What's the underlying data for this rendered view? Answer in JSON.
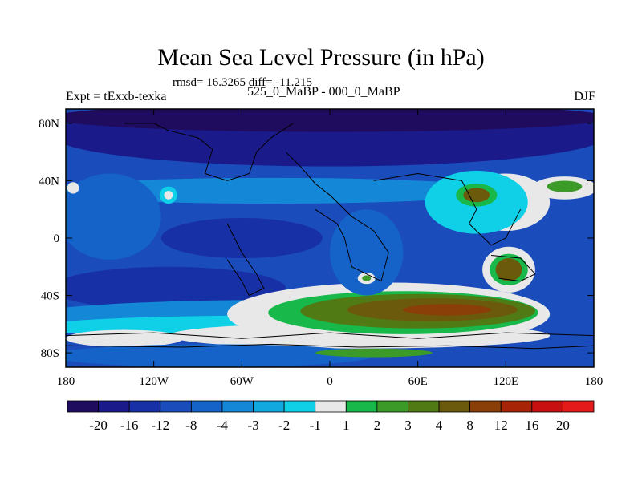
{
  "chart_data": {
    "type": "heatmap",
    "title": "Mean Sea Level Pressure (in hPa)",
    "stats_text": "rmsd= 16.3265 diff= -11.215",
    "left_label": "Expt = tExxb-texka",
    "center_label": "525_0_MaBP - 000_0_MaBP",
    "right_label": "DJF",
    "x_ticks": [
      {
        "value": -180,
        "label": "180"
      },
      {
        "value": -120,
        "label": "120W"
      },
      {
        "value": -60,
        "label": "60W"
      },
      {
        "value": 0,
        "label": "0"
      },
      {
        "value": 60,
        "label": "60E"
      },
      {
        "value": 120,
        "label": "120E"
      },
      {
        "value": 180,
        "label": "180"
      }
    ],
    "y_ticks": [
      {
        "value": 80,
        "label": "80N"
      },
      {
        "value": 40,
        "label": "40N"
      },
      {
        "value": 0,
        "label": "0"
      },
      {
        "value": -40,
        "label": "40S"
      },
      {
        "value": -80,
        "label": "80S"
      }
    ],
    "xlim": [
      -180,
      180
    ],
    "ylim": [
      -90,
      90
    ],
    "colorbar": {
      "labels": [
        "-20",
        "-16",
        "-12",
        "-8",
        "-4",
        "-3",
        "-2",
        "-1",
        "1",
        "2",
        "3",
        "4",
        "8",
        "12",
        "16",
        "20"
      ],
      "colors": [
        "#1f0c5e",
        "#1b1a8a",
        "#1830a5",
        "#1a4cbc",
        "#1563c8",
        "#1487d6",
        "#10a8df",
        "#10d0e8",
        "#e8e8e8",
        "#18b84a",
        "#3c9a28",
        "#4f7a14",
        "#6c5a0c",
        "#8a3e08",
        "#a82406",
        "#c81010",
        "#e41a1a"
      ]
    },
    "fields": [
      {
        "name": "background",
        "lon": 0,
        "lat": 0,
        "rx": 180,
        "ry": 90,
        "color": "#1a4cbc"
      },
      {
        "name": "north-band",
        "lon": 0,
        "lat": 72,
        "rx": 190,
        "ry": 22,
        "color": "#1b1a8a"
      },
      {
        "name": "arctic-cap",
        "lon": 0,
        "lat": 84,
        "rx": 190,
        "ry": 10,
        "color": "#1f0c5e"
      },
      {
        "name": "midlat-north-band",
        "lon": -40,
        "lat": 33,
        "rx": 160,
        "ry": 9,
        "color": "#1487d6"
      },
      {
        "name": "west-pacific-light",
        "lon": -150,
        "lat": 15,
        "rx": 35,
        "ry": 30,
        "color": "#1563c8"
      },
      {
        "name": "tropics-dark",
        "lon": -60,
        "lat": 0,
        "rx": 55,
        "ry": 14,
        "color": "#1830a5"
      },
      {
        "name": "south-pacific-dark",
        "lon": -110,
        "lat": -35,
        "rx": 80,
        "ry": 15,
        "color": "#1830a5"
      },
      {
        "name": "south-band-light",
        "lon": -30,
        "lat": -55,
        "rx": 180,
        "ry": 12,
        "color": "#1487d6"
      },
      {
        "name": "south-band-cyan",
        "lon": -40,
        "lat": -62,
        "rx": 160,
        "ry": 8,
        "color": "#10d0e8"
      },
      {
        "name": "antarctic-white",
        "lon": 20,
        "lat": -68,
        "rx": 130,
        "ry": 9,
        "color": "#e8e8e8"
      },
      {
        "name": "antarctic-white-west",
        "lon": -140,
        "lat": -70,
        "rx": 40,
        "ry": 6,
        "color": "#e8e8e8"
      },
      {
        "name": "polar-south-light",
        "lon": -80,
        "lat": -82,
        "rx": 110,
        "ry": 8,
        "color": "#1563c8"
      },
      {
        "name": "south-high-white",
        "lon": 40,
        "lat": -53,
        "rx": 110,
        "ry": 22,
        "color": "#e8e8e8"
      },
      {
        "name": "south-high-green",
        "lon": 50,
        "lat": -52,
        "rx": 92,
        "ry": 15,
        "color": "#18b84a"
      },
      {
        "name": "south-high-olive",
        "lon": 60,
        "lat": -51,
        "rx": 80,
        "ry": 12,
        "color": "#4f7a14"
      },
      {
        "name": "south-high-brown",
        "lon": 70,
        "lat": -50,
        "rx": 58,
        "ry": 8,
        "color": "#6c5a0c"
      },
      {
        "name": "south-high-core",
        "lon": 80,
        "lat": -50,
        "rx": 30,
        "ry": 4,
        "color": "#8a3e08"
      },
      {
        "name": "antarctic-green-strip",
        "lon": 30,
        "lat": -80,
        "rx": 40,
        "ry": 3,
        "color": "#3c9a28"
      },
      {
        "name": "asia-high-white",
        "lon": 120,
        "lat": 25,
        "rx": 30,
        "ry": 20,
        "color": "#e8e8e8"
      },
      {
        "name": "asia-cyan-ring",
        "lon": 100,
        "lat": 25,
        "rx": 35,
        "ry": 22,
        "color": "#10d0e8"
      },
      {
        "name": "asia-high-green",
        "lon": 100,
        "lat": 30,
        "rx": 14,
        "ry": 8,
        "color": "#18b84a"
      },
      {
        "name": "asia-high-olive",
        "lon": 100,
        "lat": 30,
        "rx": 9,
        "ry": 5,
        "color": "#6c5a0c"
      },
      {
        "name": "pacific-ne-white",
        "lon": 160,
        "lat": 35,
        "rx": 22,
        "ry": 8,
        "color": "#e8e8e8"
      },
      {
        "name": "pacific-ne-green",
        "lon": 160,
        "lat": 36,
        "rx": 12,
        "ry": 4,
        "color": "#3c9a28"
      },
      {
        "name": "australia-white",
        "lon": 122,
        "lat": -22,
        "rx": 18,
        "ry": 16,
        "color": "#e8e8e8"
      },
      {
        "name": "australia-green",
        "lon": 122,
        "lat": -22,
        "rx": 13,
        "ry": 11,
        "color": "#18b84a"
      },
      {
        "name": "australia-olive",
        "lon": 122,
        "lat": -22,
        "rx": 9,
        "ry": 8,
        "color": "#6c5a0c"
      },
      {
        "name": "africa-light",
        "lon": 25,
        "lat": -10,
        "rx": 25,
        "ry": 30,
        "color": "#1563c8"
      },
      {
        "name": "south-atlantic-spot",
        "lon": 25,
        "lat": -28,
        "rx": 6,
        "ry": 4,
        "color": "#e8e8e8"
      },
      {
        "name": "south-atlantic-spot-core",
        "lon": 25,
        "lat": -28,
        "rx": 3,
        "ry": 2,
        "color": "#3c9a28"
      },
      {
        "name": "w-pacific-small-white",
        "lon": -175,
        "lat": 35,
        "rx": 4,
        "ry": 4,
        "color": "#e8e8e8"
      },
      {
        "name": "n-america-cyan",
        "lon": -110,
        "lat": 30,
        "rx": 6,
        "ry": 6,
        "color": "#10d0e8"
      },
      {
        "name": "n-america-white",
        "lon": -110,
        "lat": 30,
        "rx": 3,
        "ry": 3,
        "color": "#e8e8e8"
      }
    ]
  }
}
